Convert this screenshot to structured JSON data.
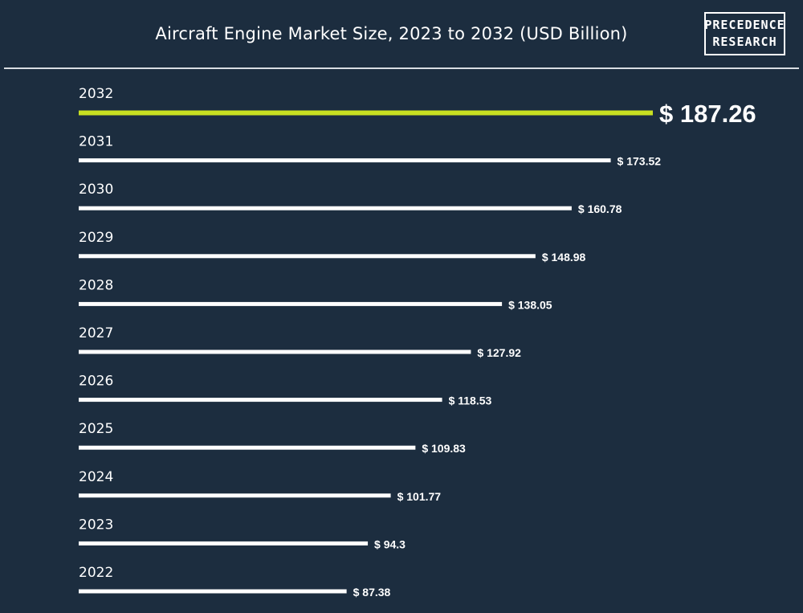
{
  "header": {
    "title": "Aircraft Engine Market Size, 2023 to 2032 (USD Billion)",
    "logo_line1": "PRECEDENCE",
    "logo_line2": "RESEARCH"
  },
  "colors": {
    "background": "#1c2d3f",
    "bar": "#ffffff",
    "highlight_bar": "#c8e021"
  },
  "chart_data": {
    "type": "bar",
    "orientation": "horizontal",
    "title": "Aircraft Engine Market Size, 2023 to 2032 (USD Billion)",
    "categories": [
      "2032",
      "2031",
      "2030",
      "2029",
      "2028",
      "2027",
      "2026",
      "2025",
      "2024",
      "2023",
      "2022"
    ],
    "values": [
      187.26,
      173.52,
      160.78,
      148.98,
      138.05,
      127.92,
      118.53,
      109.83,
      101.77,
      94.3,
      87.38
    ],
    "value_labels": [
      "$ 187.26",
      "$ 173.52",
      "$ 160.78",
      "$ 148.98",
      "$ 138.05",
      "$ 127.92",
      "$ 118.53",
      "$ 109.83",
      "$ 101.77",
      "$ 94.3",
      "$ 87.38"
    ],
    "highlight_category": "2032",
    "grid": false,
    "xlim": [
      0,
      187.26
    ]
  }
}
